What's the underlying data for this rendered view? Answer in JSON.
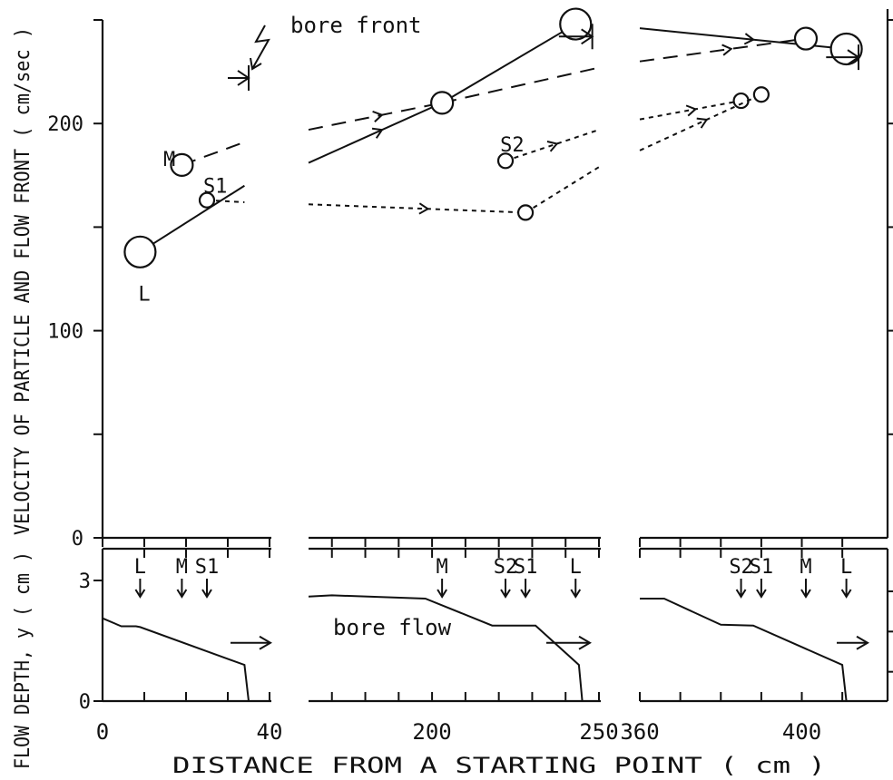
{
  "chart_data": [
    {
      "type": "line",
      "title": "",
      "ylabel": "VELOCITY OF PARTICLE AND FLOW FRONT ( cm/sec )",
      "ylim": [
        0,
        250
      ],
      "yticks": [
        "0",
        "100",
        "200"
      ],
      "annotation": "bore front",
      "panels": [
        {
          "xlim": [
            0,
            40
          ],
          "series": [
            {
              "name": "L",
              "style": "solid",
              "marker": "large-circle",
              "points": [
                [
                  9,
                  138
                ],
                [
                  34,
                  170
                ]
              ]
            },
            {
              "name": "M",
              "style": "dashed",
              "marker": "medium-circle",
              "points": [
                [
                  19,
                  180
                ],
                [
                  34,
                  191
                ]
              ]
            },
            {
              "name": "S1",
              "style": "dotted",
              "marker": "small-circle",
              "points": [
                [
                  25,
                  163
                ],
                [
                  34,
                  162
                ]
              ]
            },
            {
              "name": "bore front",
              "style": "arrow",
              "marker": "bar",
              "points": [
                [
                  30,
                  222
                ],
                [
                  35,
                  222
                ]
              ]
            }
          ],
          "marker_labels": [
            {
              "text": "L",
              "x": 10,
              "y": 118
            },
            {
              "text": "M",
              "x": 16,
              "y": 183
            },
            {
              "text": "S1",
              "x": 27,
              "y": 170
            }
          ]
        },
        {
          "xlim": [
            163,
            250
          ],
          "series": [
            {
              "name": "L",
              "style": "solid",
              "marker": "large-circle",
              "points": [
                [
                  163,
                  181
                ],
                [
                  203,
                  210
                ],
                [
                  243,
                  248
                ]
              ]
            },
            {
              "name": "bore front",
              "style": "arrow",
              "marker": "bar",
              "points": [
                [
                  238,
                  242
                ],
                [
                  248,
                  242
                ]
              ]
            },
            {
              "name": "M",
              "style": "dashed",
              "marker": "medium-circle",
              "points": [
                [
                  163,
                  197
                ],
                [
                  203,
                  210
                ],
                [
                  250,
                  227
                ]
              ]
            },
            {
              "name": "S2",
              "style": "dotted",
              "marker": "small-circle",
              "points": [
                [
                  222,
                  182
                ],
                [
                  250,
                  197
                ]
              ]
            },
            {
              "name": "S1",
              "style": "dotted",
              "marker": "small-circle",
              "points": [
                [
                  163,
                  161
                ],
                [
                  228,
                  157
                ],
                [
                  250,
                  179
                ]
              ]
            }
          ],
          "marker_labels": [
            {
              "text": "S2",
              "x": 224,
              "y": 190
            }
          ]
        },
        {
          "xlim": [
            360,
            414
          ],
          "series": [
            {
              "name": "L",
              "style": "solid",
              "marker": "large-circle",
              "points": [
                [
                  360,
                  246
                ],
                [
                  411,
                  236
                ]
              ]
            },
            {
              "name": "M",
              "style": "dashed",
              "marker": "medium-circle",
              "points": [
                [
                  360,
                  230
                ],
                [
                  401,
                  241
                ]
              ]
            },
            {
              "name": "bore front",
              "style": "arrow",
              "marker": "bar",
              "points": [
                [
                  406,
                  232
                ],
                [
                  414,
                  232
                ]
              ]
            },
            {
              "name": "S2",
              "style": "dotted",
              "marker": "small-circle",
              "points": [
                [
                  360,
                  202
                ],
                [
                  385,
                  211
                ]
              ]
            },
            {
              "name": "S1",
              "style": "dotted",
              "marker": "small-circle",
              "points": [
                [
                  360,
                  187
                ],
                [
                  390,
                  214
                ]
              ]
            }
          ],
          "marker_labels": []
        }
      ]
    },
    {
      "type": "line",
      "title": "",
      "ylabel": "FLOW DEPTH, y ( cm )",
      "xlabel": "DISTANCE FROM A STARTING POINT ( cm )",
      "ylim": [
        0,
        3
      ],
      "yticks": [
        "0",
        "3"
      ],
      "annotation": "bore flow",
      "panels": [
        {
          "xlim": [
            0,
            40
          ],
          "xticks": [
            "0",
            "40"
          ],
          "profile": [
            [
              0,
              2.06
            ],
            [
              4.5,
              1.86
            ],
            [
              8,
              1.86
            ],
            [
              9,
              1.84
            ],
            [
              34,
              0.9
            ],
            [
              35,
              0
            ]
          ],
          "particle_markers": [
            {
              "label": "L",
              "x": 9
            },
            {
              "label": "M",
              "x": 19
            },
            {
              "label": "S1",
              "x": 25
            }
          ]
        },
        {
          "xlim": [
            163,
            250
          ],
          "xticks": [
            "200",
            "250"
          ],
          "profile": [
            [
              163,
              2.6
            ],
            [
              170,
              2.63
            ],
            [
              198,
              2.55
            ],
            [
              218,
              1.88
            ],
            [
              231,
              1.88
            ],
            [
              244,
              0.9
            ],
            [
              245,
              0
            ]
          ],
          "particle_markers": [
            {
              "label": "M",
              "x": 203
            },
            {
              "label": "S2",
              "x": 222
            },
            {
              "label": "S1",
              "x": 228
            },
            {
              "label": "L",
              "x": 243
            }
          ]
        },
        {
          "xlim": [
            360,
            414
          ],
          "xticks": [
            "360",
            "400"
          ],
          "profile": [
            [
              360,
              2.55
            ],
            [
              366,
              2.55
            ],
            [
              380,
              1.9
            ],
            [
              388,
              1.88
            ],
            [
              410,
              0.9
            ],
            [
              411,
              0
            ]
          ],
          "particle_markers": [
            {
              "label": "S2",
              "x": 385
            },
            {
              "label": "S1",
              "x": 390
            },
            {
              "label": "M",
              "x": 401
            },
            {
              "label": "L",
              "x": 411
            }
          ]
        }
      ]
    }
  ]
}
